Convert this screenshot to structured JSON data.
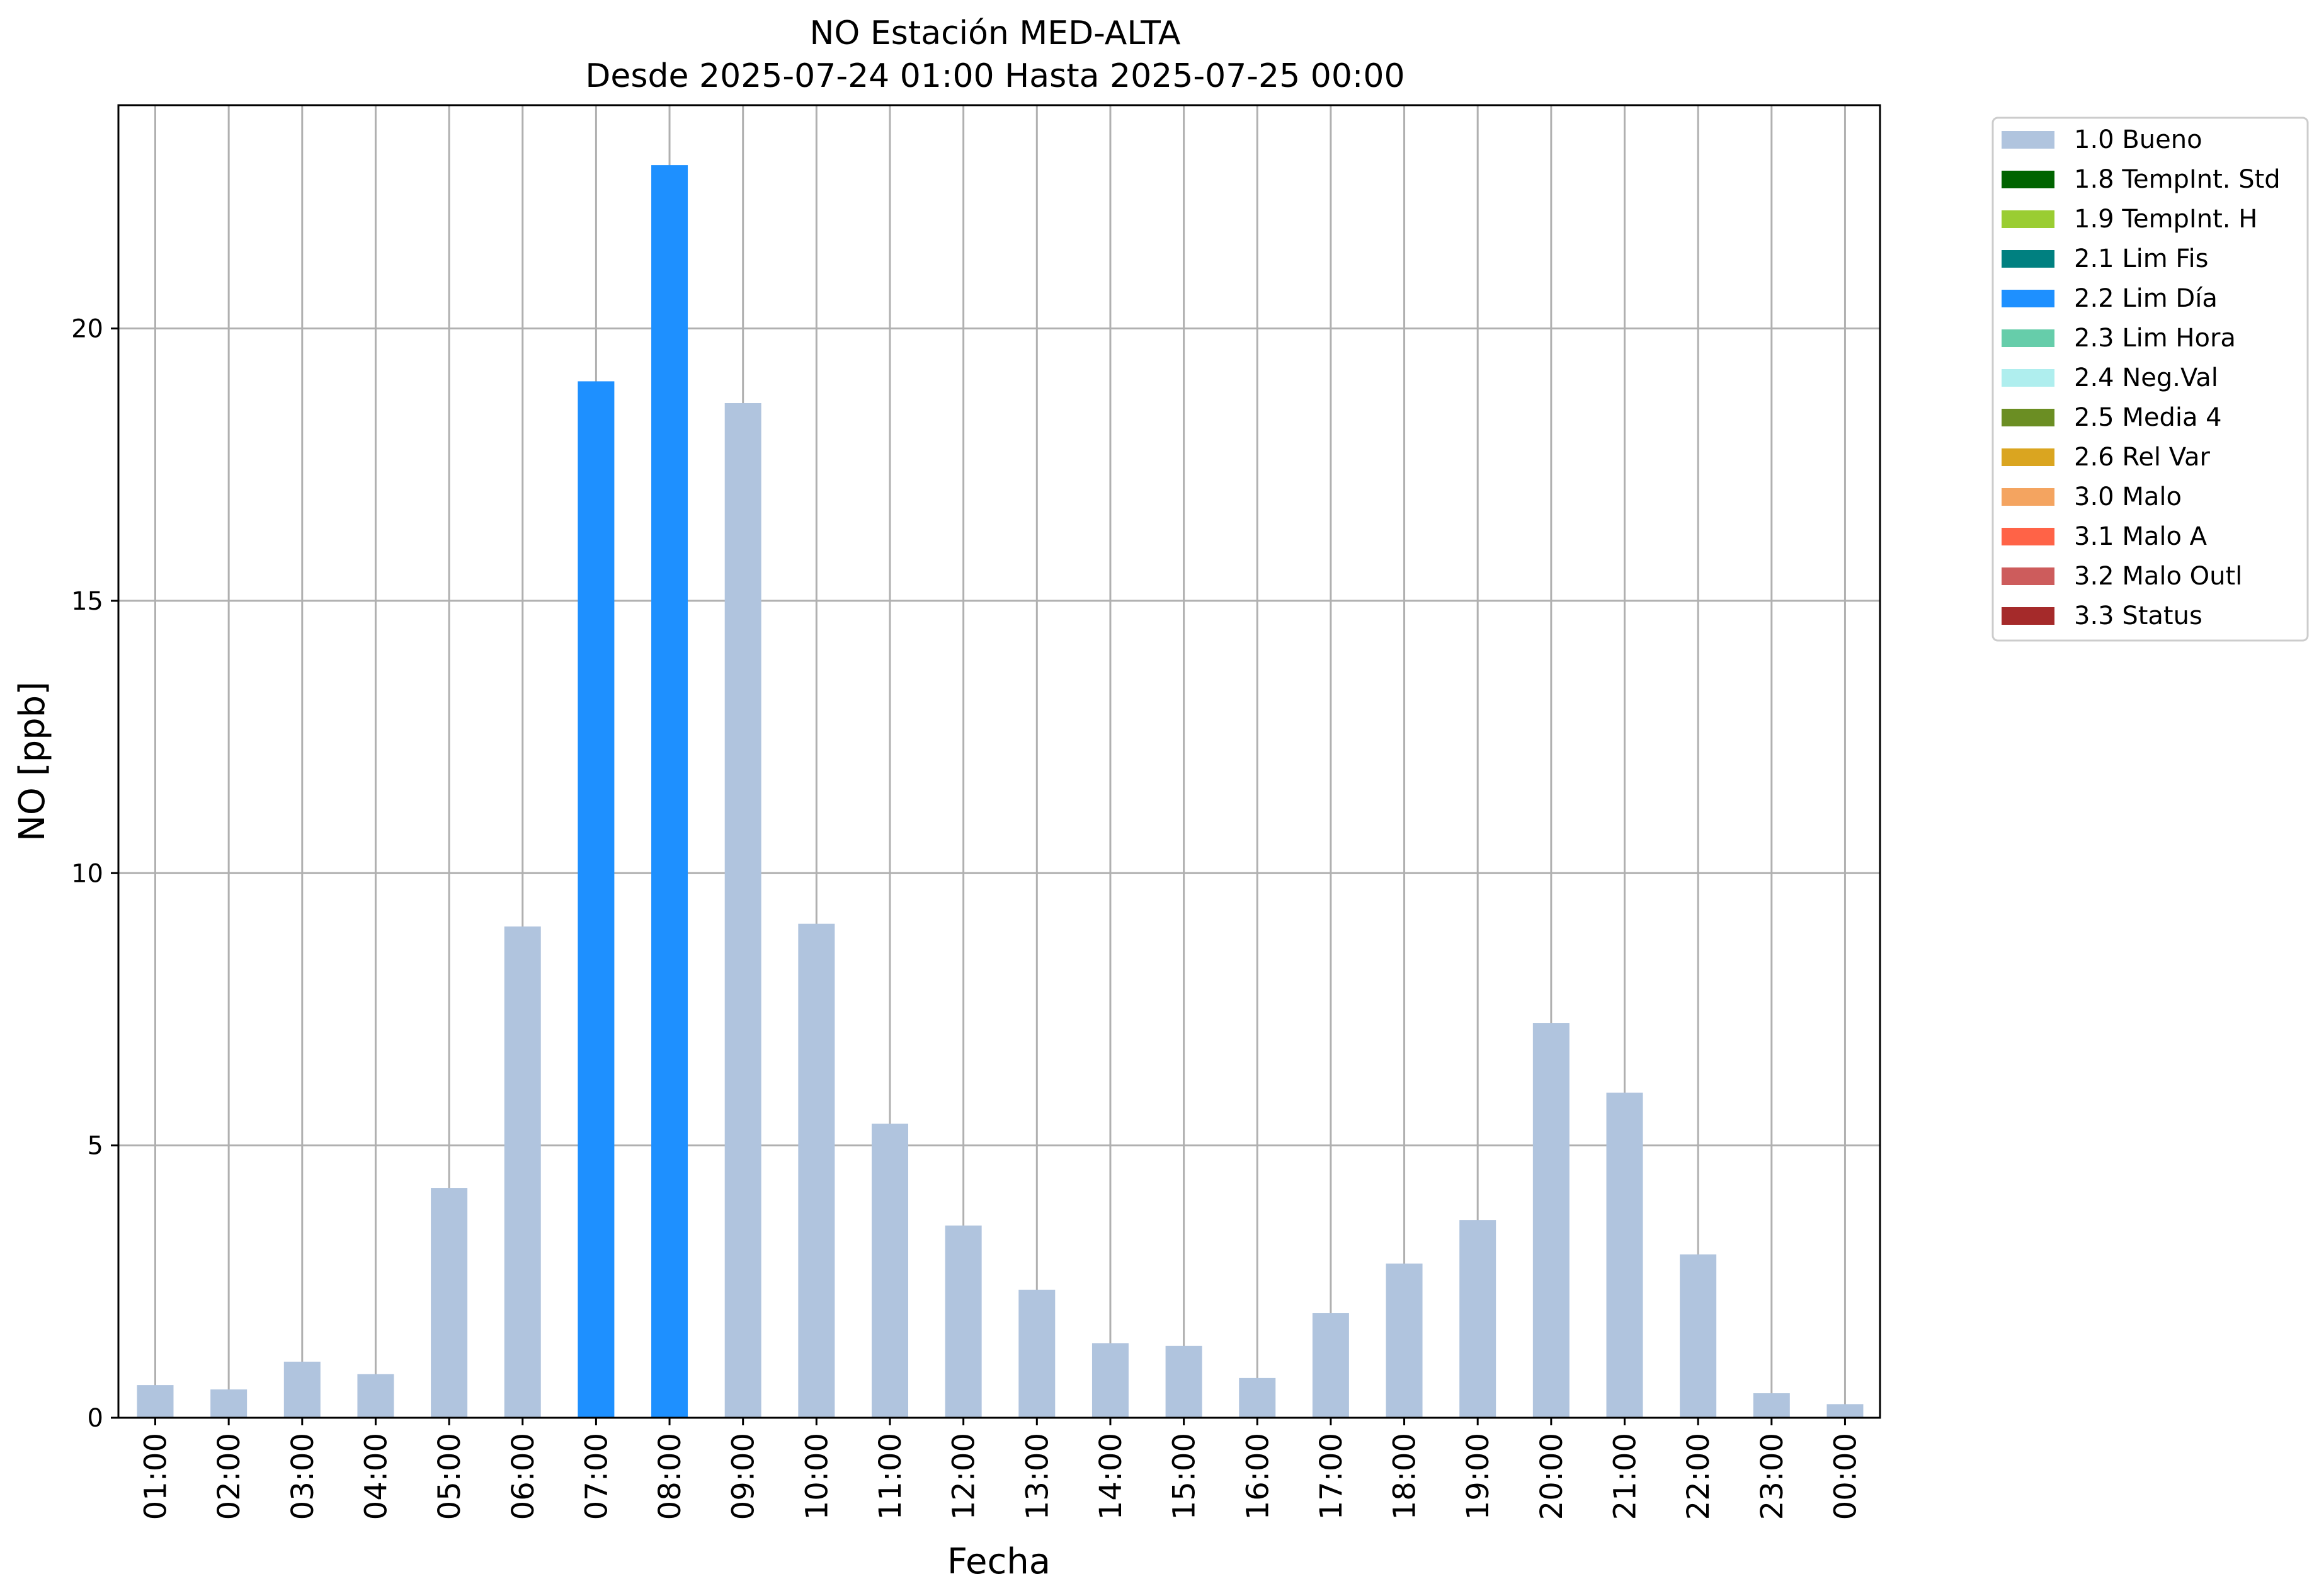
{
  "chart_data": {
    "type": "bar",
    "title": "NO Estación MED-ALTA",
    "subtitle": "Desde 2025-07-24 01:00 Hasta 2025-07-25 00:00",
    "xlabel": "Fecha",
    "ylabel": "NO [ppb]",
    "ylim": [
      0,
      24.1
    ],
    "yticks": [
      0,
      5,
      10,
      15,
      20
    ],
    "ytick_labels": [
      "0",
      "5",
      "10",
      "15",
      "20"
    ],
    "grid": true,
    "legend_position": "outside-top-right",
    "categories": [
      "01:00",
      "02:00",
      "03:00",
      "04:00",
      "05:00",
      "06:00",
      "07:00",
      "08:00",
      "09:00",
      "10:00",
      "11:00",
      "12:00",
      "13:00",
      "14:00",
      "15:00",
      "16:00",
      "17:00",
      "18:00",
      "19:00",
      "20:00",
      "21:00",
      "22:00",
      "23:00",
      "00:00"
    ],
    "values": [
      0.6,
      0.52,
      1.03,
      0.8,
      4.22,
      9.02,
      19.03,
      23.0,
      18.63,
      9.07,
      5.4,
      3.53,
      2.35,
      1.37,
      1.32,
      0.73,
      1.92,
      2.83,
      3.63,
      7.25,
      5.97,
      3.0,
      0.45,
      0.25
    ],
    "flags": [
      "1.0 Bueno",
      "1.0 Bueno",
      "1.0 Bueno",
      "1.0 Bueno",
      "1.0 Bueno",
      "1.0 Bueno",
      "2.2 Lim Día",
      "2.2 Lim Día",
      "1.0 Bueno",
      "1.0 Bueno",
      "1.0 Bueno",
      "1.0 Bueno",
      "1.0 Bueno",
      "1.0 Bueno",
      "1.0 Bueno",
      "1.0 Bueno",
      "1.0 Bueno",
      "1.0 Bueno",
      "1.0 Bueno",
      "1.0 Bueno",
      "1.0 Bueno",
      "1.0 Bueno",
      "1.0 Bueno",
      "1.0 Bueno"
    ],
    "legend": [
      {
        "label": "1.0 Bueno",
        "color": "#b0c4de"
      },
      {
        "label": "1.8 TempInt. Std",
        "color": "#006400"
      },
      {
        "label": "1.9 TempInt. H",
        "color": "#9acd32"
      },
      {
        "label": "2.1 Lim Fis",
        "color": "#008080"
      },
      {
        "label": "2.2 Lim Día",
        "color": "#1e90ff"
      },
      {
        "label": "2.3 Lim Hora",
        "color": "#66cdaa"
      },
      {
        "label": "2.4 Neg.Val",
        "color": "#afeeee"
      },
      {
        "label": "2.5 Media 4",
        "color": "#6b8e23"
      },
      {
        "label": "2.6 Rel Var",
        "color": "#daa520"
      },
      {
        "label": "3.0 Malo",
        "color": "#f4a460"
      },
      {
        "label": "3.1 Malo A",
        "color": "#ff6347"
      },
      {
        "label": "3.2 Malo Outl",
        "color": "#cd5c5c"
      },
      {
        "label": "3.3 Status",
        "color": "#a52a2a"
      }
    ]
  }
}
